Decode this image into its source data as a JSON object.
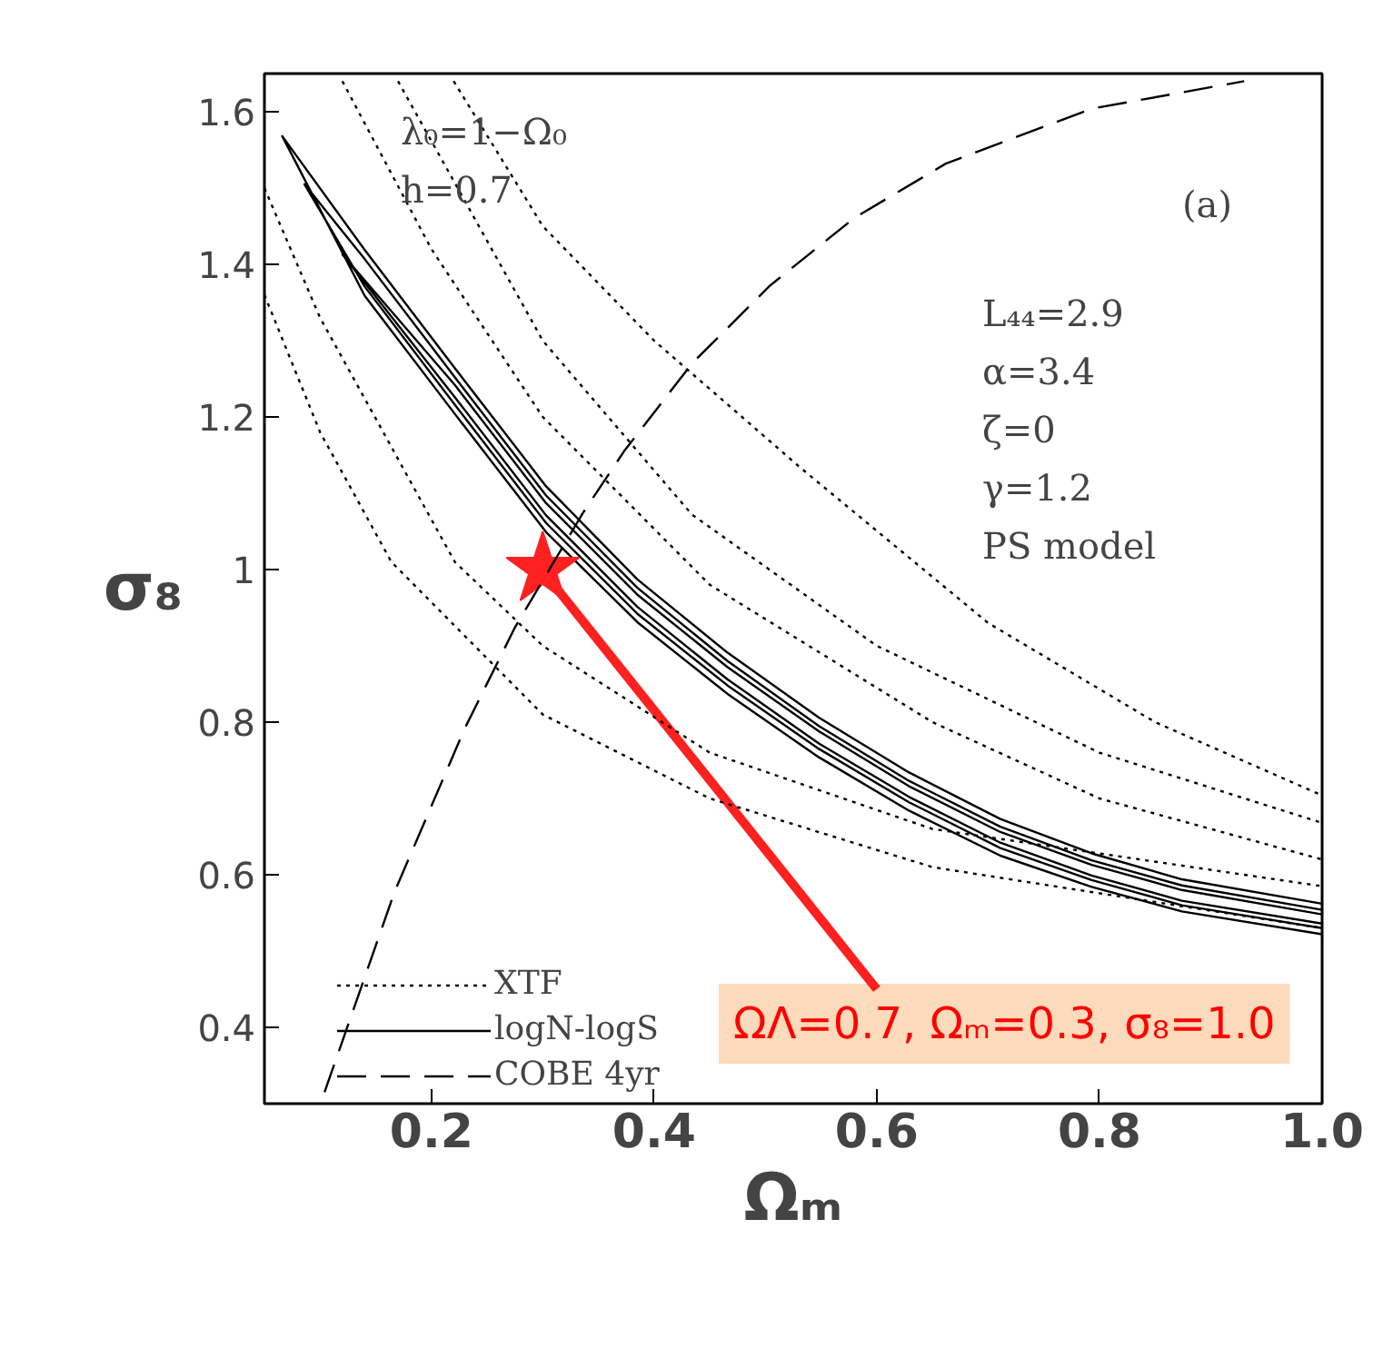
{
  "chart_data": {
    "type": "line",
    "xlabel": "Ωₘ",
    "ylabel": "σ₈",
    "xlim": [
      0.05,
      1.0
    ],
    "ylim": [
      0.3,
      1.65
    ],
    "xticks": [
      0.2,
      0.4,
      0.6,
      0.8,
      {
        "value": 1,
        "label": "1.0"
      }
    ],
    "yticks": [
      0.4,
      0.6,
      0.8,
      1,
      1.2,
      1.4,
      1.6
    ],
    "grid": false,
    "legend": "bottom left",
    "marker": "none",
    "series": [
      {
        "name": "XTF",
        "color": "#000000",
        "line_style": "dotted",
        "x": [
          0.22,
          0.3,
          0.4,
          0.531,
          0.7,
          0.85,
          1.0,
          null,
          0.17,
          0.3,
          0.434,
          0.6,
          0.8,
          1.0,
          null,
          0.12,
          0.2,
          0.3,
          0.45,
          0.65,
          0.8,
          1.0,
          null,
          0.05,
          0.1,
          0.221,
          0.3,
          0.45,
          0.65,
          1.0,
          null,
          0.05,
          0.1,
          0.164,
          0.3,
          0.45,
          0.65,
          1.0
        ],
        "values": [
          1.64,
          1.45,
          1.3,
          1.134,
          0.93,
          0.8,
          0.704,
          null,
          1.64,
          1.3,
          1.072,
          0.9,
          0.76,
          0.668,
          null,
          1.64,
          1.42,
          1.2,
          0.98,
          0.8,
          0.7,
          0.62,
          null,
          1.5,
          1.33,
          1.01,
          0.9,
          0.76,
          0.66,
          0.585,
          null,
          1.36,
          1.18,
          1.01,
          0.81,
          0.7,
          0.61,
          0.53
        ]
      },
      {
        "name": "logN-logS",
        "color": "#000000",
        "line_style": "solid",
        "x": [
          1.0,
          0.874,
          0.793,
          0.711,
          0.629,
          0.548,
          0.466,
          0.385,
          0.303,
          0.221,
          0.14,
          0.066,
          0.14,
          0.221,
          0.303,
          0.385,
          0.466,
          0.548,
          0.629,
          0.711,
          0.793,
          0.874,
          1.0,
          null,
          1.0,
          0.874,
          0.793,
          0.711,
          0.629,
          0.548,
          0.466,
          0.385,
          0.303,
          0.221,
          0.14,
          0.086,
          0.14,
          0.221,
          0.303,
          0.385,
          0.466,
          0.548,
          0.629,
          0.711,
          0.793,
          0.874,
          1.0,
          null,
          1.0,
          0.874,
          0.793,
          0.711,
          0.629,
          0.548,
          0.466,
          0.385,
          0.303,
          0.221,
          0.12,
          0.221,
          0.303,
          0.385,
          0.466,
          0.548,
          0.629,
          0.711,
          0.793,
          0.874,
          1.0
        ],
        "values": [
          0.522,
          0.552,
          0.584,
          0.625,
          0.684,
          0.754,
          0.837,
          0.931,
          1.049,
          1.204,
          1.359,
          1.568,
          1.419,
          1.264,
          1.109,
          0.987,
          0.891,
          0.806,
          0.734,
          0.673,
          0.628,
          0.594,
          0.562,
          null,
          0.53,
          0.56,
          0.593,
          0.635,
          0.695,
          0.765,
          0.848,
          0.942,
          1.061,
          1.216,
          1.371,
          1.505,
          1.407,
          1.252,
          1.097,
          0.976,
          0.88,
          0.795,
          0.723,
          0.663,
          0.619,
          0.586,
          0.554,
          null,
          0.536,
          0.566,
          0.599,
          0.642,
          0.702,
          0.772,
          0.856,
          0.951,
          1.071,
          1.226,
          1.413,
          1.242,
          1.087,
          0.967,
          0.872,
          0.788,
          0.716,
          0.656,
          0.613,
          0.58,
          0.548
        ]
      },
      {
        "type": "scatter",
        "marker": "star",
        "color": "#ff2020",
        "x": [
          0.3
        ],
        "values": [
          1.0
        ]
      },
      {
        "name": "COBE 4yr",
        "color": "#000000",
        "line_style": "dashed",
        "x": [
          0.104,
          0.167,
          0.23,
          0.275,
          0.336,
          0.373,
          0.434,
          0.504,
          0.58,
          0.662,
          0.793,
          0.93
        ],
        "values": [
          0.315,
          0.578,
          0.792,
          0.924,
          1.074,
          1.155,
          1.27,
          1.372,
          1.461,
          1.532,
          1.604,
          1.64
        ]
      }
    ],
    "annotations": [
      "λ₀=1−Ω₀",
      "h=0.7",
      "(a)",
      "L₄₄=2.9",
      "α=3.4",
      "ζ=0",
      "γ=1.2",
      "PS model",
      "ΩΛ=0.7, Ωₘ=0.3, σ₈=1.0"
    ]
  }
}
